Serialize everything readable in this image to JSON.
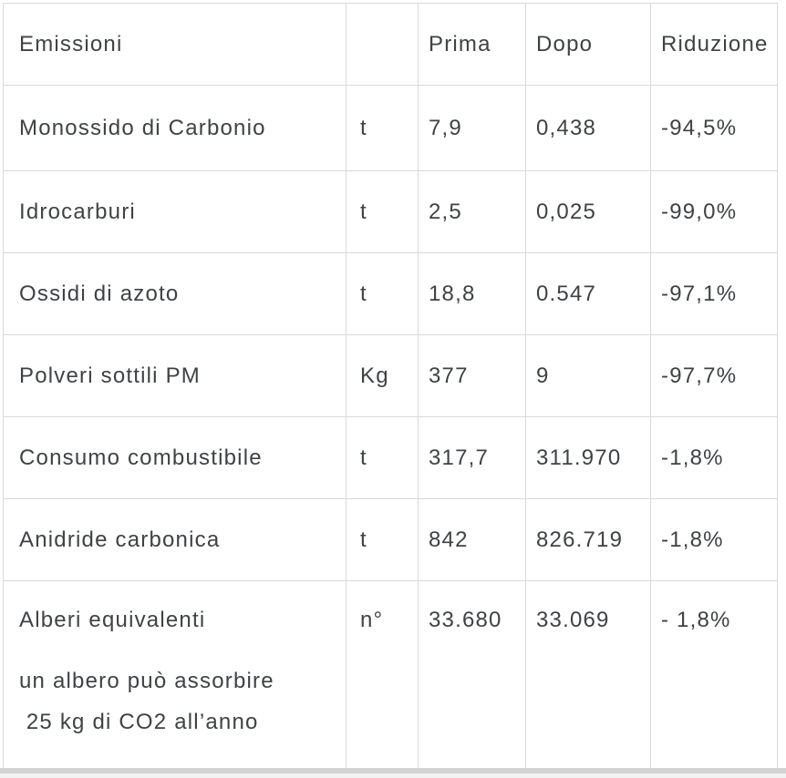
{
  "table": {
    "columns": [
      "Emissioni",
      "",
      "Prima",
      "Dopo",
      "Riduzione"
    ],
    "rows": [
      {
        "name": "Monossido di Carbonio",
        "unit": "t",
        "prima": "7,9",
        "dopo": "0,438",
        "riduzione": "-94,5%"
      },
      {
        "name": "Idrocarburi",
        "unit": "t",
        "prima": "2,5",
        "dopo": "0,025",
        "riduzione": "-99,0%"
      },
      {
        "name": "Ossidi di azoto",
        "unit": "t",
        "prima": "18,8",
        "dopo": "0.547",
        "riduzione": "-97,1%"
      },
      {
        "name": "Polveri sottili PM",
        "unit": "Kg",
        "prima": "377",
        "dopo": "9",
        "riduzione": "-97,7%"
      },
      {
        "name": "Consumo combustibile",
        "unit": "t",
        "prima": "317,7",
        "dopo": "311.970",
        "riduzione": "-1,8%"
      },
      {
        "name": "Anidride carbonica",
        "unit": "t",
        "prima": "842",
        "dopo": "826.719",
        "riduzione": "-1,8%"
      },
      {
        "name": "Alberi equivalenti",
        "unit": "n°",
        "prima": "33.680",
        "dopo": "33.069",
        "riduzione": "- 1,8%",
        "notes": [
          "un albero può assorbire",
          " 25 kg di CO2 all’anno"
        ]
      }
    ]
  },
  "colors": {
    "border": "#d9d9d9",
    "text": "#3f4245",
    "background": "#ffffff",
    "scrollbar_thumb": "#d3d3d3",
    "scrollbar_track": "#f2f2f2"
  }
}
